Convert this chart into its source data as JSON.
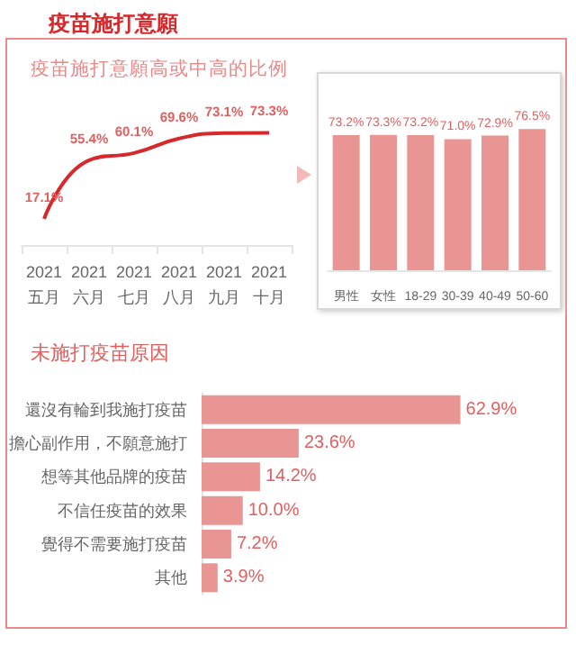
{
  "chart_data": [
    {
      "type": "line",
      "title": "疫苗施打意願",
      "subtitle": "疫苗施打意願高或中高的比例",
      "categories": [
        "2021\n五月",
        "2021\n六月",
        "2021\n七月",
        "2021\n八月",
        "2021\n九月",
        "2021\n十月"
      ],
      "values": [
        17.1,
        55.4,
        60.1,
        69.6,
        73.1,
        73.3
      ],
      "value_labels": [
        "17.1%",
        "55.4%",
        "60.1%",
        "69.6%",
        "73.1%",
        "73.3%"
      ],
      "color": "#d7282c",
      "marker": "none",
      "tick_labels": "x"
    },
    {
      "type": "bar",
      "categories": [
        "男性",
        "女性",
        "18-29",
        "30-39",
        "40-49",
        "50-60"
      ],
      "values": [
        73.2,
        73.3,
        73.2,
        71.0,
        72.9,
        76.5
      ],
      "value_labels": [
        "73.2%",
        "73.3%",
        "73.2%",
        "71.0%",
        "72.9%",
        "76.5%"
      ],
      "color": "#e99594",
      "tick_labels": "x"
    },
    {
      "type": "bar",
      "orientation": "horizontal",
      "title": "未施打疫苗原因",
      "categories": [
        "還沒有輪到我施打疫苗",
        "擔心副作用，不願意施打",
        "想等其他品牌的疫苗",
        "不信任疫苗的效果",
        "覺得不需要施打疫苗",
        "其他"
      ],
      "values": [
        62.9,
        23.6,
        14.2,
        10.0,
        7.2,
        3.9
      ],
      "value_labels": [
        "62.9%",
        "23.6%",
        "14.2%",
        "10.0%",
        "7.2%",
        "3.9%"
      ],
      "color": "#e99594",
      "tick_labels": "y"
    }
  ]
}
